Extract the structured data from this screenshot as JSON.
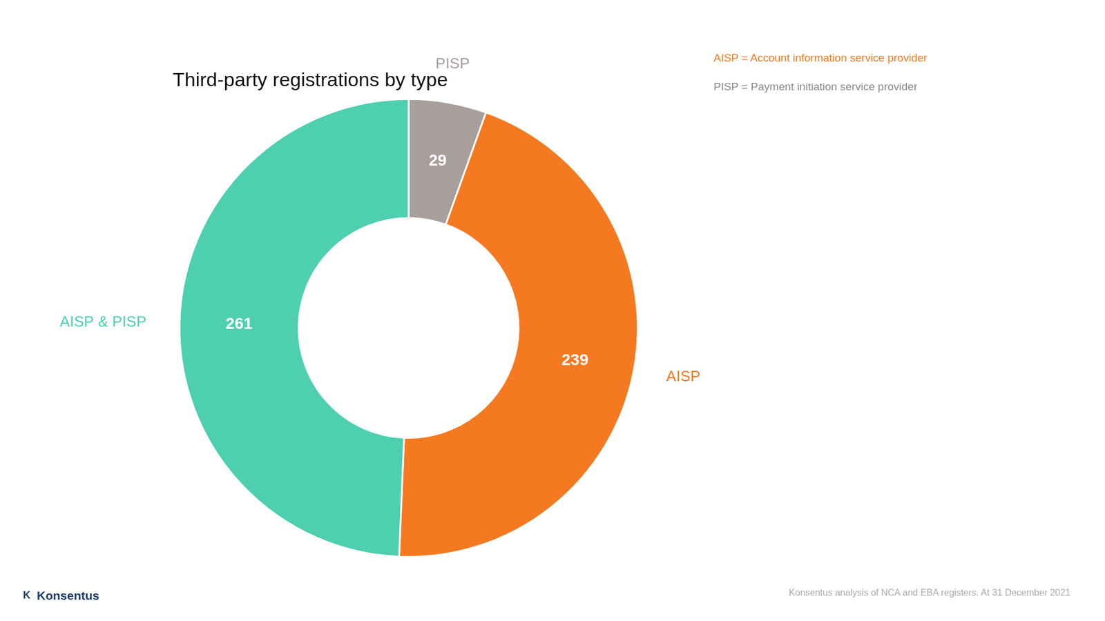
{
  "chart_data": {
    "type": "doughnut",
    "title": "Third-party registrations by type",
    "categories": [
      "PISP",
      "AISP",
      "AISP & PISP"
    ],
    "values": [
      29,
      239,
      261
    ],
    "colors": [
      "#A89E9C",
      "#F47920",
      "#4DCFB0"
    ],
    "data_labels": true,
    "annotations": [
      {
        "text": "AISP = Account information service provider",
        "color": "#F47920"
      },
      {
        "text": "PISP = Payment initiation service provider",
        "color": "#888888"
      },
      {
        "text": "Konsentus analysis of NCA and EBA registers. At 31 December 2021",
        "color": "#aaaaaa"
      },
      {
        "text": "K",
        "color": "#1B3C6E"
      },
      {
        "text": "Konsentus",
        "color": "#1B3C6E"
      }
    ]
  }
}
